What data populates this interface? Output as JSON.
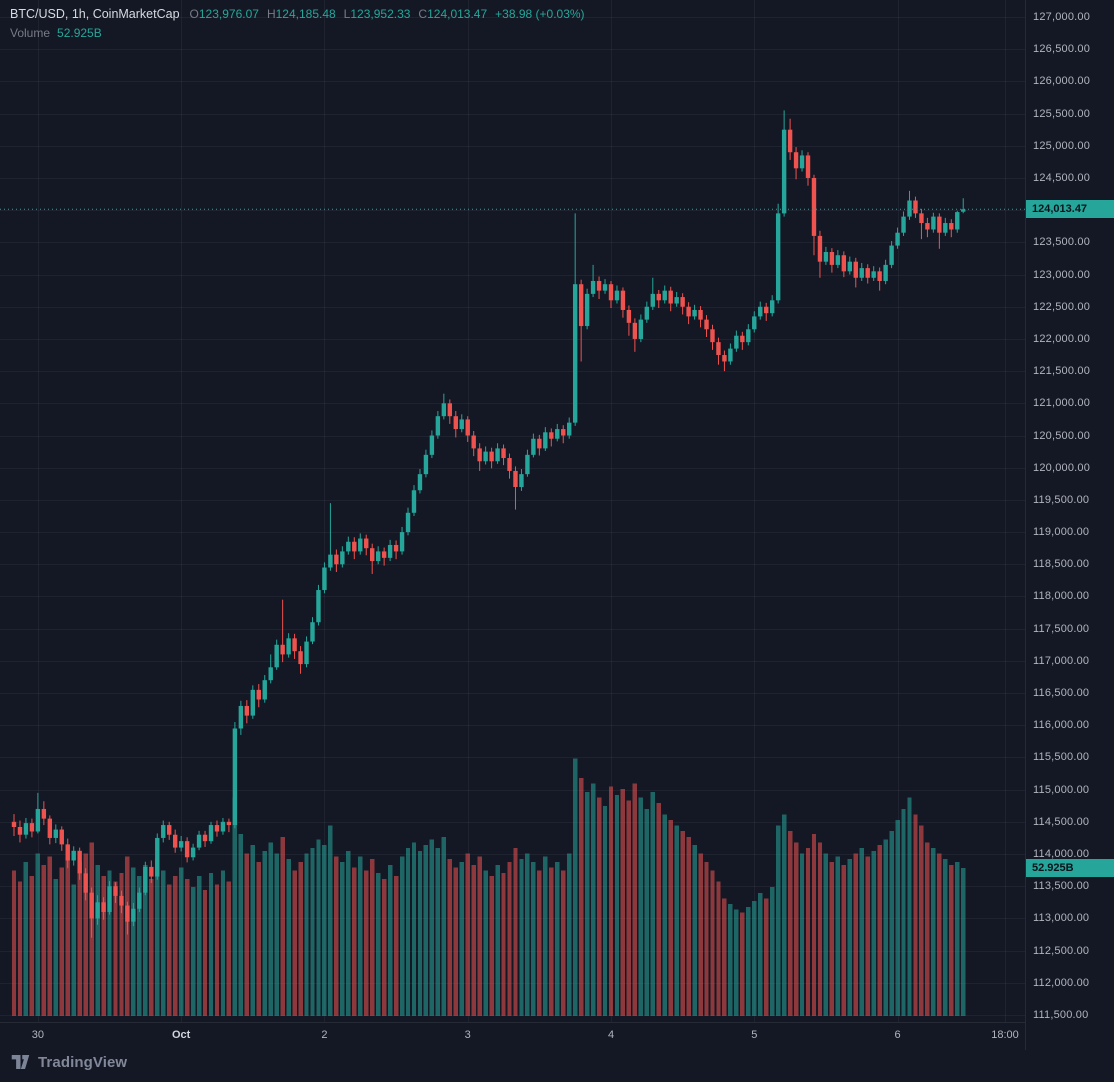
{
  "header": {
    "symbol": "BTC/USD",
    "interval": "1h",
    "source": "CoinMarketCap",
    "separator": ", ",
    "ohlc": {
      "o_label": "O",
      "o": "123,976.07",
      "h_label": "H",
      "h": "124,185.48",
      "l_label": "L",
      "l": "123,952.33",
      "c_label": "C",
      "c": "124,013.47",
      "change": "+38.98 (+0.03%)"
    },
    "volume_label": "Volume",
    "volume_value": "52.925B"
  },
  "price_axis": {
    "start": 127000,
    "step": 500,
    "labels": [
      "127,000.00",
      "126,500.00",
      "126,000.00",
      "125,500.00",
      "125,000.00",
      "124,500.00",
      "124,000.00",
      "123,500.00",
      "123,000.00",
      "122,500.00",
      "122,000.00",
      "121,500.00",
      "121,000.00",
      "120,500.00",
      "120,000.00",
      "119,500.00",
      "119,000.00",
      "118,500.00",
      "118,000.00",
      "117,500.00",
      "117,000.00",
      "116,500.00",
      "116,000.00",
      "115,500.00",
      "115,000.00",
      "114,500.00",
      "114,000.00",
      "113,500.00",
      "113,000.00",
      "112,500.00",
      "112,000.00",
      "111,500.00"
    ],
    "current_price_label": "124,013.47",
    "volume_tag_label": "52.925B"
  },
  "footer": {
    "brand": "TradingView"
  },
  "colors": {
    "background": "#141824",
    "up": "#26a69a",
    "down": "#ef5350",
    "vol_up": "rgba(38,166,154,0.55)",
    "vol_down": "rgba(239,83,80,0.55)",
    "grid": "rgba(134,141,158,0.10)",
    "axis_text": "#b2b5be",
    "muted_text": "#787b86",
    "tag_bg": "#26a69a",
    "tag_text": "#0a141c"
  },
  "chart_data": {
    "type": "candlestick",
    "title": "BTC/USD, 1h, CoinMarketCap",
    "symbol": "BTC/USD",
    "interval": "1h",
    "source": "CoinMarketCap",
    "ylim": [
      111500,
      127000
    ],
    "grid": true,
    "legend_position": "top-left",
    "current_price": 124013.47,
    "last_candle": {
      "open": 123976.07,
      "high": 124185.48,
      "low": 123952.33,
      "close": 124013.47,
      "change_text": "+38.98 (+0.03%)"
    },
    "volume_unit": "B",
    "last_volume_label": "52.925B",
    "time_ticks": [
      {
        "label": "30",
        "index": 4
      },
      {
        "label": "Oct",
        "index": 28,
        "strong": true
      },
      {
        "label": "2",
        "index": 52
      },
      {
        "label": "3",
        "index": 76
      },
      {
        "label": "4",
        "index": 100
      },
      {
        "label": "5",
        "index": 124
      },
      {
        "label": "6",
        "index": 148
      },
      {
        "label": "18:00",
        "index": 166
      }
    ],
    "candles_format": [
      "open",
      "high",
      "low",
      "close",
      "volume_B"
    ],
    "candles": [
      [
        114500,
        114620,
        114280,
        114420,
        52
      ],
      [
        114420,
        114520,
        114180,
        114300,
        48
      ],
      [
        114300,
        114560,
        114240,
        114480,
        55
      ],
      [
        114480,
        114550,
        114260,
        114350,
        50
      ],
      [
        114350,
        114950,
        114320,
        114700,
        58
      ],
      [
        114700,
        114820,
        114450,
        114550,
        54
      ],
      [
        114550,
        114600,
        114150,
        114250,
        57
      ],
      [
        114250,
        114460,
        114170,
        114380,
        49
      ],
      [
        114380,
        114430,
        114050,
        114150,
        53
      ],
      [
        114150,
        114240,
        113780,
        113900,
        56
      ],
      [
        113900,
        114120,
        113820,
        114050,
        47
      ],
      [
        114050,
        114100,
        113600,
        113700,
        55
      ],
      [
        113700,
        113780,
        113280,
        113400,
        58
      ],
      [
        113400,
        113480,
        112700,
        113000,
        62
      ],
      [
        113000,
        113360,
        112900,
        113250,
        54
      ],
      [
        113250,
        113330,
        112980,
        113100,
        50
      ],
      [
        113100,
        113580,
        113060,
        113500,
        52
      ],
      [
        113500,
        113560,
        113240,
        113350,
        48
      ],
      [
        113350,
        113430,
        113080,
        113200,
        51
      ],
      [
        113200,
        113260,
        112750,
        112950,
        57
      ],
      [
        112950,
        113240,
        112880,
        113150,
        53
      ],
      [
        113150,
        113480,
        113100,
        113400,
        50
      ],
      [
        113400,
        113880,
        113360,
        113800,
        54
      ],
      [
        113800,
        113900,
        113550,
        113650,
        49
      ],
      [
        113650,
        114320,
        113600,
        114250,
        56
      ],
      [
        114250,
        114520,
        114180,
        114450,
        52
      ],
      [
        114450,
        114500,
        114220,
        114300,
        47
      ],
      [
        114300,
        114380,
        114020,
        114100,
        50
      ],
      [
        114100,
        114280,
        114040,
        114200,
        53
      ],
      [
        114200,
        114260,
        113870,
        113950,
        49
      ],
      [
        113950,
        114160,
        113900,
        114100,
        46
      ],
      [
        114100,
        114360,
        114060,
        114300,
        50
      ],
      [
        114300,
        114360,
        114110,
        114200,
        45
      ],
      [
        114200,
        114500,
        114160,
        114450,
        51
      ],
      [
        114450,
        114520,
        114270,
        114350,
        47
      ],
      [
        114350,
        114560,
        114300,
        114500,
        52
      ],
      [
        114500,
        114550,
        114340,
        114450,
        48
      ],
      [
        114450,
        116050,
        114400,
        115950,
        78
      ],
      [
        115950,
        116380,
        115850,
        116300,
        65
      ],
      [
        116300,
        116390,
        116030,
        116150,
        58
      ],
      [
        116150,
        116620,
        116100,
        116550,
        61
      ],
      [
        116550,
        116640,
        116280,
        116400,
        55
      ],
      [
        116400,
        116780,
        116350,
        116700,
        59
      ],
      [
        116700,
        117100,
        116650,
        116900,
        62
      ],
      [
        116900,
        117330,
        116860,
        117250,
        58
      ],
      [
        117250,
        117950,
        116980,
        117100,
        64
      ],
      [
        117100,
        117430,
        117050,
        117350,
        56
      ],
      [
        117350,
        117420,
        117030,
        117150,
        52
      ],
      [
        117150,
        117230,
        116800,
        116950,
        55
      ],
      [
        116950,
        117380,
        116900,
        117300,
        58
      ],
      [
        117300,
        117680,
        117260,
        117600,
        60
      ],
      [
        117600,
        118180,
        117550,
        118100,
        63
      ],
      [
        118100,
        118530,
        118050,
        118450,
        61
      ],
      [
        118450,
        119450,
        118400,
        118650,
        68
      ],
      [
        118650,
        118730,
        118380,
        118500,
        57
      ],
      [
        118500,
        118780,
        118450,
        118700,
        55
      ],
      [
        118700,
        118930,
        118650,
        118850,
        59
      ],
      [
        118850,
        118920,
        118580,
        118700,
        53
      ],
      [
        118700,
        118980,
        118650,
        118900,
        57
      ],
      [
        118900,
        118960,
        118640,
        118750,
        52
      ],
      [
        118750,
        118820,
        118350,
        118550,
        56
      ],
      [
        118550,
        118780,
        118500,
        118700,
        51
      ],
      [
        118700,
        118760,
        118480,
        118600,
        49
      ],
      [
        118600,
        118880,
        118550,
        118800,
        54
      ],
      [
        118800,
        118870,
        118580,
        118700,
        50
      ],
      [
        118700,
        119080,
        118650,
        119000,
        57
      ],
      [
        119000,
        119380,
        118950,
        119300,
        60
      ],
      [
        119300,
        119730,
        119250,
        119650,
        62
      ],
      [
        119650,
        119980,
        119600,
        119900,
        59
      ],
      [
        119900,
        120280,
        119850,
        120200,
        61
      ],
      [
        120200,
        120580,
        120150,
        120500,
        63
      ],
      [
        120500,
        120880,
        120450,
        120800,
        60
      ],
      [
        120800,
        121150,
        120750,
        121000,
        64
      ],
      [
        121000,
        121060,
        120680,
        120800,
        56
      ],
      [
        120800,
        120880,
        120470,
        120600,
        53
      ],
      [
        120600,
        120830,
        120550,
        120750,
        55
      ],
      [
        120750,
        120800,
        120400,
        120500,
        58
      ],
      [
        120500,
        120570,
        120180,
        120300,
        54
      ],
      [
        120300,
        120380,
        119950,
        120100,
        57
      ],
      [
        120100,
        120330,
        120050,
        120250,
        52
      ],
      [
        120250,
        120310,
        119990,
        120100,
        50
      ],
      [
        120100,
        120380,
        120060,
        120300,
        54
      ],
      [
        120300,
        120360,
        120040,
        120150,
        51
      ],
      [
        120150,
        120220,
        119830,
        119950,
        55
      ],
      [
        119950,
        120020,
        119350,
        119700,
        60
      ],
      [
        119700,
        119980,
        119640,
        119900,
        56
      ],
      [
        119900,
        120280,
        119860,
        120200,
        58
      ],
      [
        120200,
        120530,
        120160,
        120450,
        55
      ],
      [
        120450,
        120510,
        120190,
        120300,
        52
      ],
      [
        120300,
        120630,
        120260,
        120550,
        57
      ],
      [
        120550,
        120610,
        120330,
        120450,
        53
      ],
      [
        120450,
        120680,
        120410,
        120600,
        55
      ],
      [
        120600,
        120660,
        120380,
        120500,
        52
      ],
      [
        120500,
        120780,
        120450,
        120700,
        58
      ],
      [
        120700,
        123950,
        120650,
        122850,
        92
      ],
      [
        122850,
        122920,
        121650,
        122200,
        85
      ],
      [
        122200,
        122780,
        122150,
        122700,
        80
      ],
      [
        122700,
        123150,
        122650,
        122900,
        83
      ],
      [
        122900,
        122970,
        122620,
        122750,
        78
      ],
      [
        122750,
        122930,
        122700,
        122850,
        75
      ],
      [
        122850,
        122900,
        122480,
        122600,
        82
      ],
      [
        122600,
        122830,
        122550,
        122750,
        79
      ],
      [
        122750,
        122800,
        122330,
        122450,
        81
      ],
      [
        122450,
        122520,
        122050,
        122250,
        77
      ],
      [
        122250,
        122320,
        121800,
        122000,
        83
      ],
      [
        122000,
        122380,
        121950,
        122300,
        78
      ],
      [
        122300,
        122580,
        122250,
        122500,
        74
      ],
      [
        122500,
        122950,
        122450,
        122700,
        80
      ],
      [
        122700,
        122760,
        122480,
        122600,
        76
      ],
      [
        122600,
        122830,
        122550,
        122750,
        72
      ],
      [
        122750,
        122810,
        122430,
        122550,
        70
      ],
      [
        122550,
        122730,
        122500,
        122650,
        68
      ],
      [
        122650,
        122710,
        122380,
        122500,
        66
      ],
      [
        122500,
        122570,
        122230,
        122350,
        64
      ],
      [
        122350,
        122530,
        122300,
        122450,
        61
      ],
      [
        122450,
        122510,
        122180,
        122300,
        58
      ],
      [
        122300,
        122370,
        122030,
        122150,
        55
      ],
      [
        122150,
        122220,
        121830,
        121950,
        52
      ],
      [
        121950,
        122020,
        121600,
        121750,
        48
      ],
      [
        121750,
        121820,
        121500,
        121650,
        42
      ],
      [
        121650,
        121930,
        121600,
        121850,
        40
      ],
      [
        121850,
        122130,
        121800,
        122050,
        38
      ],
      [
        122050,
        122110,
        121830,
        121950,
        37
      ],
      [
        121950,
        122230,
        121900,
        122150,
        39
      ],
      [
        122150,
        122430,
        122100,
        122350,
        41
      ],
      [
        122350,
        122580,
        122300,
        122500,
        44
      ],
      [
        122500,
        122560,
        122280,
        122400,
        42
      ],
      [
        122400,
        122680,
        122350,
        122600,
        46
      ],
      [
        122600,
        124100,
        122550,
        123950,
        68
      ],
      [
        123950,
        125550,
        123900,
        125250,
        72
      ],
      [
        125250,
        125420,
        124780,
        124900,
        66
      ],
      [
        124900,
        124980,
        124480,
        124650,
        62
      ],
      [
        124650,
        124930,
        124600,
        124850,
        58
      ],
      [
        124850,
        124900,
        124380,
        124500,
        60
      ],
      [
        124500,
        124550,
        123300,
        123600,
        65
      ],
      [
        123600,
        123680,
        122950,
        123200,
        62
      ],
      [
        123200,
        123430,
        123150,
        123350,
        58
      ],
      [
        123350,
        123410,
        123030,
        123150,
        55
      ],
      [
        123150,
        123380,
        123100,
        123300,
        57
      ],
      [
        123300,
        123360,
        122960,
        123050,
        54
      ],
      [
        123050,
        123280,
        123000,
        123200,
        56
      ],
      [
        123200,
        123260,
        122800,
        122950,
        58
      ],
      [
        122950,
        123180,
        122900,
        123100,
        60
      ],
      [
        123100,
        123160,
        122860,
        122950,
        57
      ],
      [
        122950,
        123130,
        122900,
        123050,
        59
      ],
      [
        123050,
        123110,
        122750,
        122900,
        61
      ],
      [
        122900,
        123230,
        122850,
        123150,
        63
      ],
      [
        123150,
        123520,
        123100,
        123450,
        66
      ],
      [
        123450,
        123730,
        123400,
        123650,
        70
      ],
      [
        123650,
        123980,
        123600,
        123900,
        74
      ],
      [
        123900,
        124300,
        123850,
        124150,
        78
      ],
      [
        124150,
        124210,
        123880,
        123950,
        72
      ],
      [
        123950,
        124020,
        123550,
        123800,
        68
      ],
      [
        123800,
        123880,
        123580,
        123700,
        62
      ],
      [
        123700,
        123960,
        123650,
        123900,
        60
      ],
      [
        123900,
        123950,
        123400,
        123650,
        58
      ],
      [
        123650,
        123880,
        123600,
        123800,
        56
      ],
      [
        123800,
        123860,
        123580,
        123700,
        54
      ],
      [
        123700,
        123990,
        123650,
        123970,
        55
      ],
      [
        123976.07,
        124185.48,
        123952.33,
        124013.47,
        52.925
      ]
    ]
  }
}
